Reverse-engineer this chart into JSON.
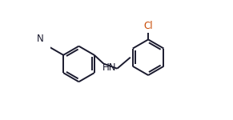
{
  "bg_color": "#ffffff",
  "bond_color": "#1a1a2e",
  "atom_color_N": "#1a1a2e",
  "atom_color_Cl": "#c84800",
  "line_width": 1.4,
  "dbo": 0.018,
  "figsize": [
    2.91,
    1.5
  ],
  "dpi": 100,
  "xlim": [
    0.0,
    1.0
  ],
  "ylim": [
    0.05,
    0.95
  ]
}
